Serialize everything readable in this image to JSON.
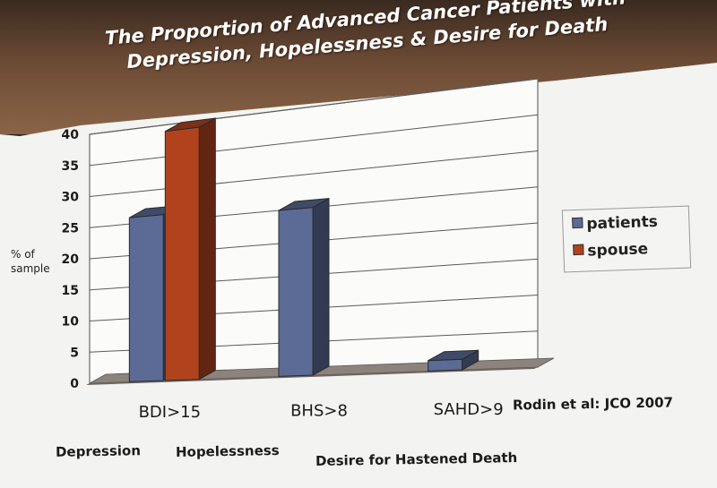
{
  "slide": {
    "title_line1": "The Proportion  of Advanced Cancer Patients with",
    "title_line2": "Depression, Hopelessness & Desire for Death",
    "source": "Rodin et al: JCO  2007",
    "footer": [
      "Depression",
      "Hopelessness",
      "Desire for Hastened Death"
    ]
  },
  "chart_data": {
    "type": "bar",
    "title": "The Proportion  of Advanced Cancer Patients with Depression, Hopelessness & Desire for Death",
    "categories": [
      "BDI>15",
      "BHS>8",
      "SAHD>9"
    ],
    "series": [
      {
        "name": "patients",
        "values": [
          26,
          25,
          1.5
        ]
      },
      {
        "name": "spouse",
        "values": [
          39,
          0,
          0
        ]
      }
    ],
    "ylabel_line1": "% of",
    "ylabel_line2": "sample",
    "xlabel": "",
    "ylim": [
      0,
      40
    ],
    "yticks": [
      0,
      5,
      10,
      15,
      20,
      25,
      30,
      35,
      40
    ],
    "grid": true,
    "legend_position": "right",
    "colors": {
      "patients": "#5b6b96",
      "spouse": "#b0431e"
    }
  }
}
